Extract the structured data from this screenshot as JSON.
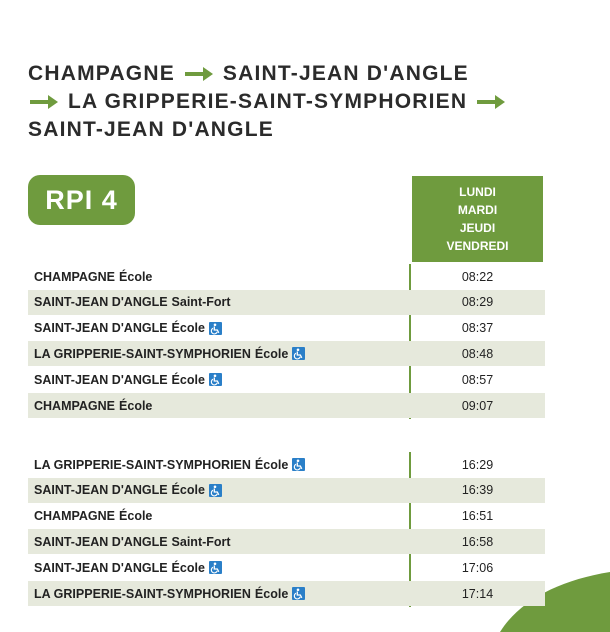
{
  "title": {
    "stops": [
      "CHAMPAGNE",
      "SAINT-JEAN D'ANGLE",
      "LA GRIPPERIE-SAINT-SYMPHORIEN",
      "SAINT-JEAN D'ANGLE"
    ]
  },
  "badge": "RPI 4",
  "days": [
    "LUNDI",
    "MARDI",
    "JEUDI",
    "VENDREDI"
  ],
  "sections": [
    {
      "rows": [
        {
          "stop": "CHAMPAGNE",
          "place": "École",
          "accessible": false,
          "time": "08:22"
        },
        {
          "stop": "SAINT-JEAN D'ANGLE",
          "place": "Saint-Fort",
          "accessible": false,
          "time": "08:29"
        },
        {
          "stop": "SAINT-JEAN D'ANGLE",
          "place": "École",
          "accessible": true,
          "time": "08:37"
        },
        {
          "stop": "LA GRIPPERIE-SAINT-SYMPHORIEN",
          "place": "École",
          "accessible": true,
          "time": "08:48"
        },
        {
          "stop": "SAINT-JEAN D'ANGLE",
          "place": "École",
          "accessible": true,
          "time": "08:57"
        },
        {
          "stop": "CHAMPAGNE",
          "place": "École",
          "accessible": false,
          "time": "09:07"
        }
      ]
    },
    {
      "rows": [
        {
          "stop": "LA GRIPPERIE-SAINT-SYMPHORIEN",
          "place": "École",
          "accessible": true,
          "time": "16:29"
        },
        {
          "stop": "SAINT-JEAN D'ANGLE",
          "place": "École",
          "accessible": true,
          "time": "16:39"
        },
        {
          "stop": "CHAMPAGNE",
          "place": "École",
          "accessible": false,
          "time": "16:51"
        },
        {
          "stop": "SAINT-JEAN D'ANGLE",
          "place": "Saint-Fort",
          "accessible": false,
          "time": "16:58"
        },
        {
          "stop": "SAINT-JEAN D'ANGLE",
          "place": "École",
          "accessible": true,
          "time": "17:06"
        },
        {
          "stop": "LA GRIPPERIE-SAINT-SYMPHORIEN",
          "place": "École",
          "accessible": true,
          "time": "17:14"
        }
      ]
    }
  ]
}
